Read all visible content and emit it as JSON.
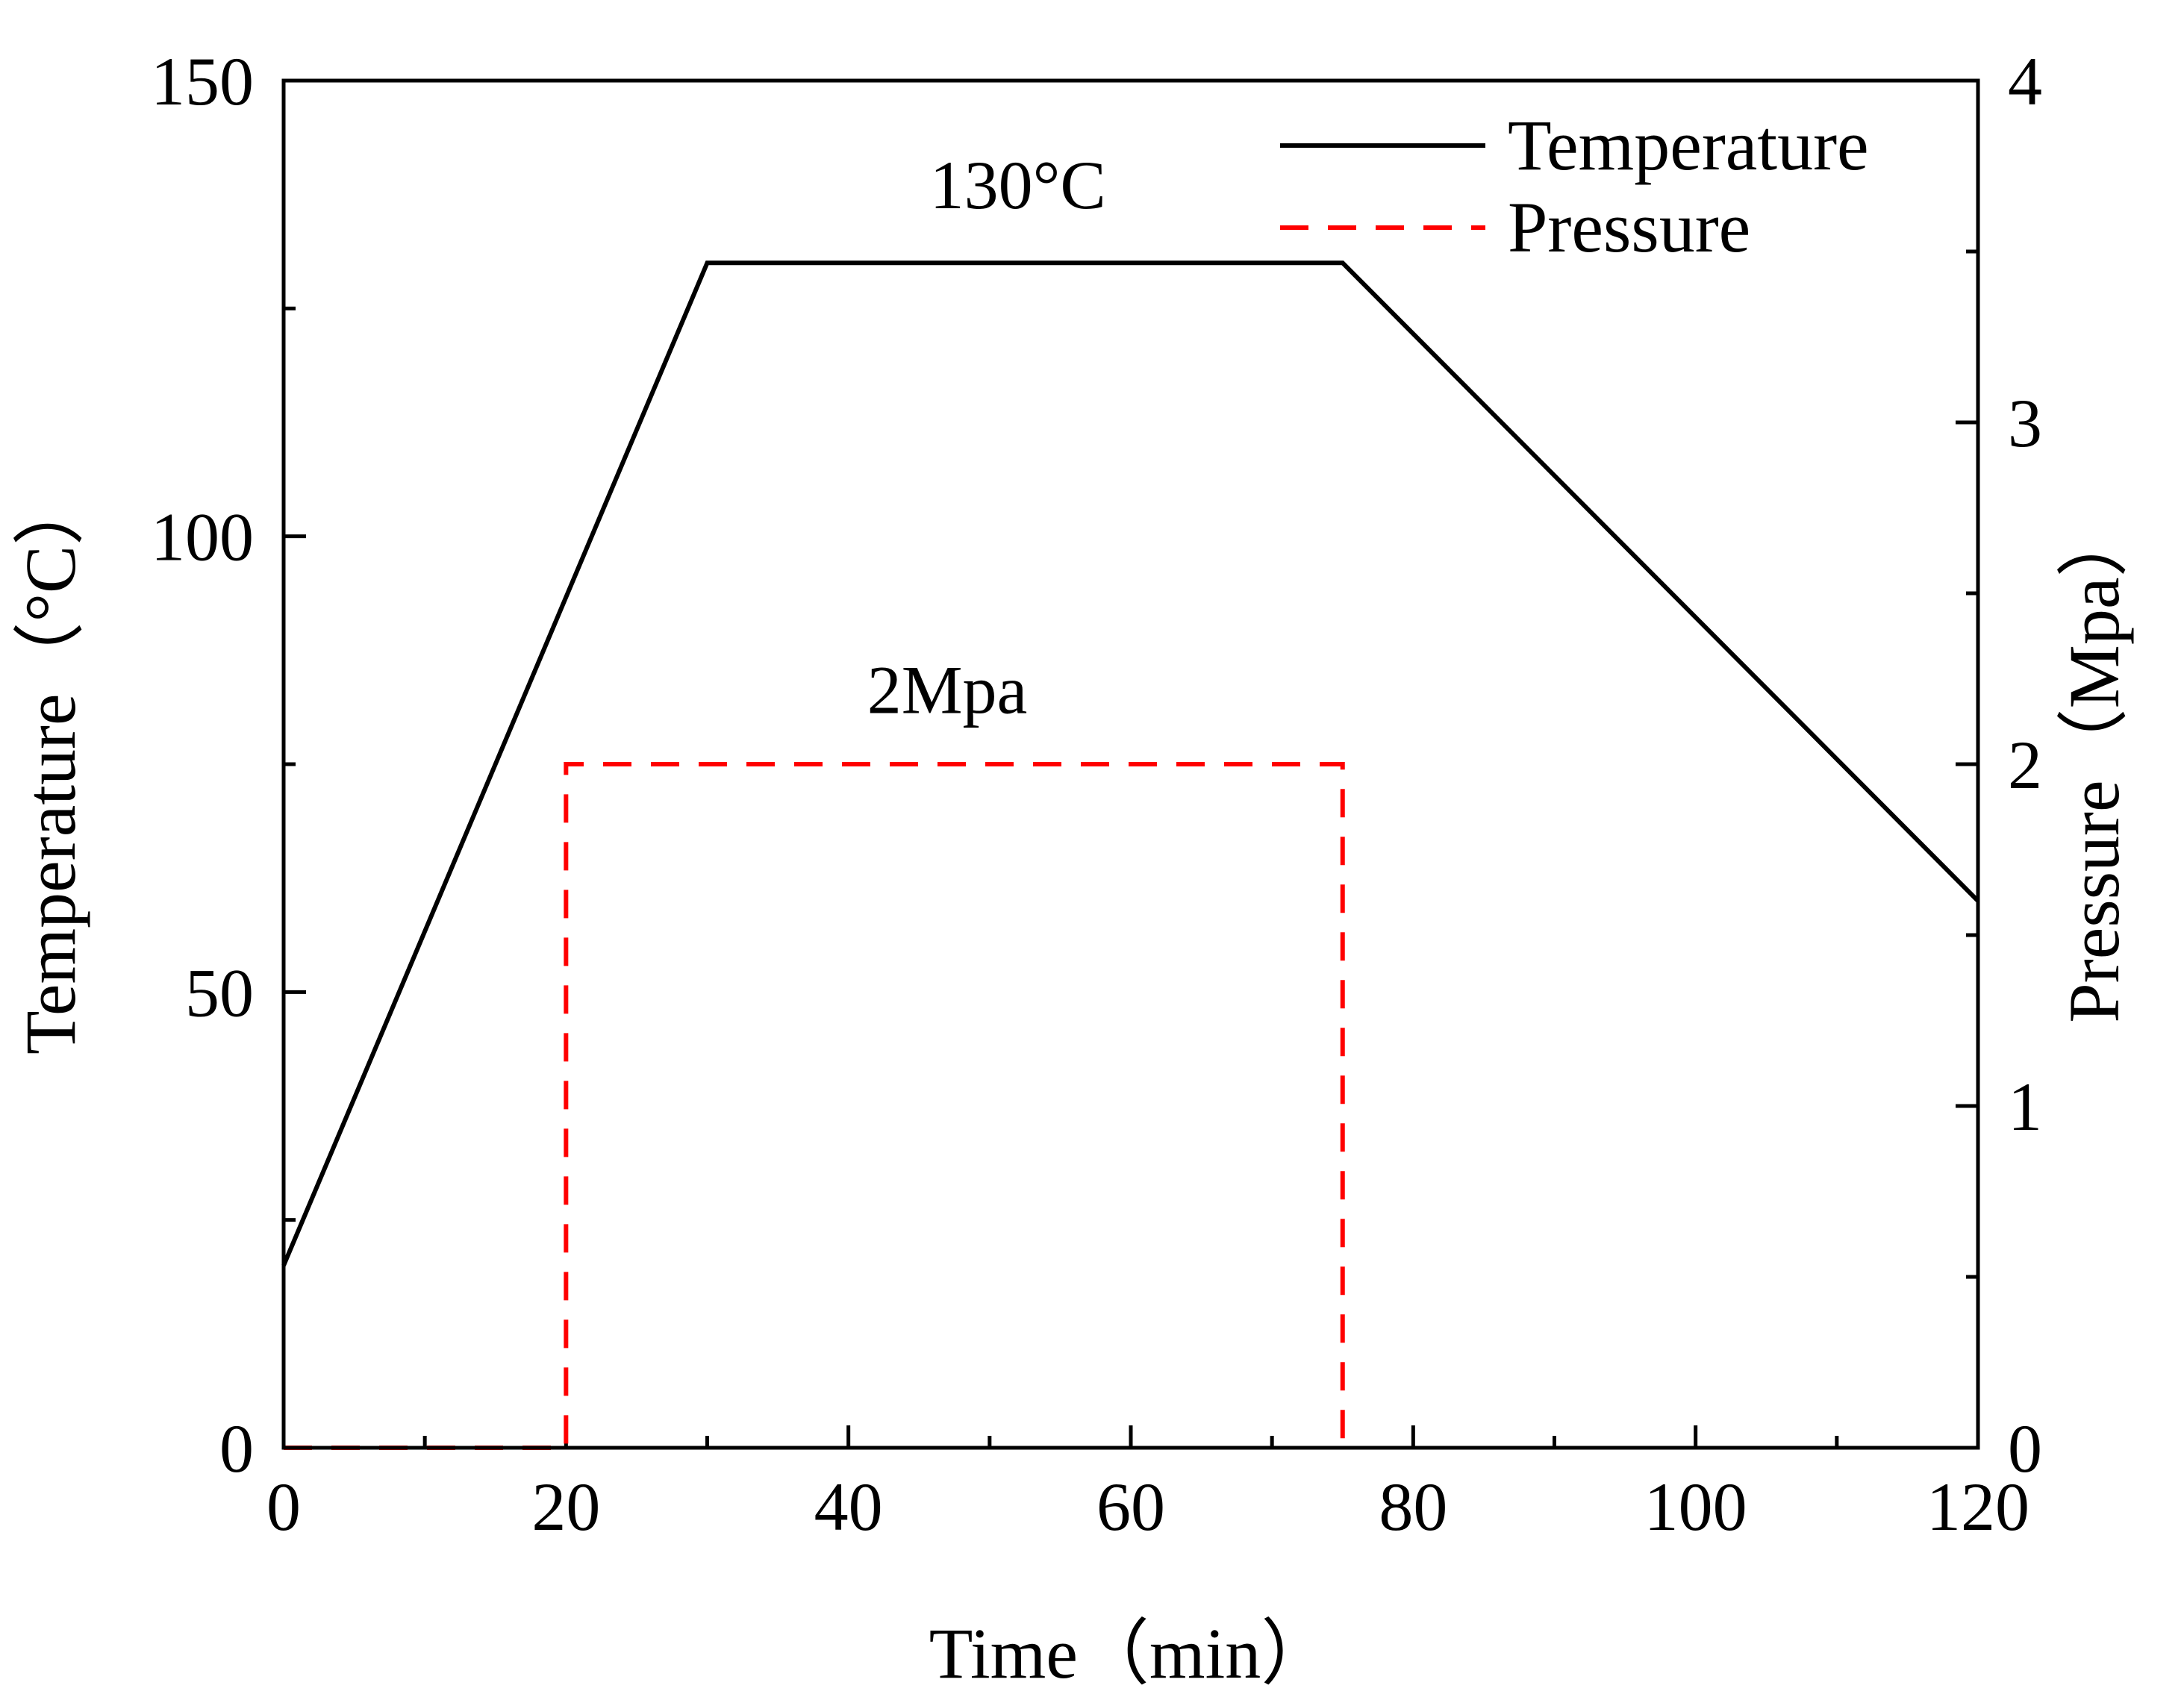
{
  "chart_data": {
    "type": "line",
    "xlabel": "Time（min）",
    "ylabel": "Temperature（°C）",
    "y2label": "Pressure（Mpa）",
    "xlim": [
      0,
      120
    ],
    "ylim": [
      0,
      150
    ],
    "y2lim": [
      0,
      4
    ],
    "xticks": [
      0,
      20,
      40,
      60,
      80,
      100,
      120
    ],
    "xminor": [
      10,
      30,
      50,
      70,
      90,
      110
    ],
    "yticks": [
      0,
      50,
      100,
      150
    ],
    "yminor": [
      25,
      75,
      125
    ],
    "y2ticks": [
      0,
      1,
      2,
      3,
      4
    ],
    "y2minor": [
      0.5,
      1.5,
      2.5,
      3.5
    ],
    "series": [
      {
        "name": "Temperature",
        "axis": "left",
        "color": "#000000",
        "dash": "solid",
        "x": [
          0,
          30,
          75,
          120
        ],
        "y": [
          20,
          130,
          130,
          60
        ]
      },
      {
        "name": "Pressure",
        "axis": "right",
        "color": "#ff0000",
        "dash": "dashed",
        "x": [
          0,
          20,
          20,
          75,
          75
        ],
        "y": [
          0,
          0,
          2,
          2,
          0
        ]
      }
    ],
    "annotations": [
      {
        "text": "130°C",
        "x": 52,
        "y": 136
      },
      {
        "text": "2Mpa",
        "x": 47,
        "y": 2.15,
        "axis": "right"
      }
    ],
    "legend": {
      "position": "top-right",
      "entries": [
        "Temperature",
        "Pressure"
      ]
    }
  }
}
